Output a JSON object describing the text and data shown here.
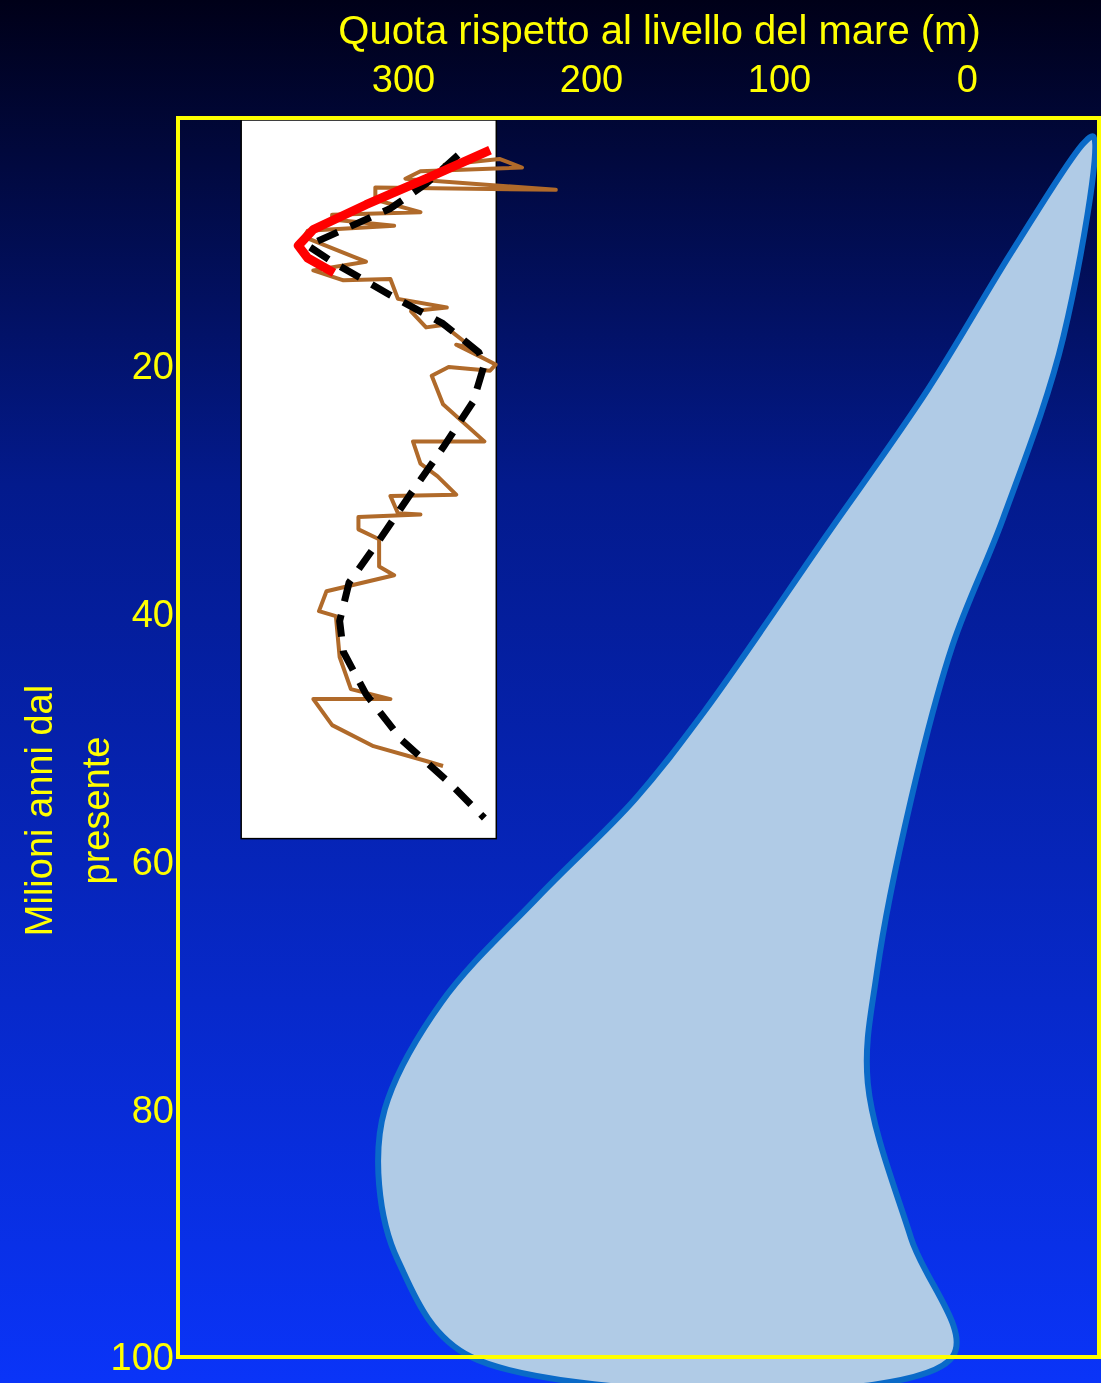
{
  "chart_data": {
    "type": "line",
    "xlabel": "Quota rispetto al livello del mare (m)",
    "ylabel": "Milioni anni dal presente",
    "xlim": [
      420,
      -70
    ],
    "xticks": [
      300,
      200,
      100,
      0
    ],
    "ylim": [
      100,
      0
    ],
    "yticks": [
      20,
      40,
      60,
      80,
      100
    ],
    "series": [
      {
        "type": "area",
        "color": "#b0cbe6",
        "x": [
          -62,
          -24,
          21,
          75,
          140,
          177,
          228,
          280,
          310,
          313,
          303,
          264,
          8,
          30,
          53,
          48,
          30,
          8,
          -19,
          -51,
          -67
        ],
        "values": [
          2,
          10.7,
          21.9,
          33.7,
          47.9,
          55,
          62.8,
          71.4,
          80,
          86.1,
          92.2,
          100,
          100,
          90.4,
          77.9,
          68.8,
          55,
          42.6,
          32.3,
          17.7,
          1.5
        ]
      },
      {
        "color": "#b06a2a",
        "line_style": "solid",
        "x": [
          279,
          249,
          237,
          291,
          299,
          219,
          315,
          315,
          291,
          338,
          338,
          305,
          351,
          353,
          320,
          348,
          332,
          307,
          303,
          277,
          296,
          288,
          279,
          263,
          272,
          260,
          251,
          254,
          276,
          285,
          279,
          257,
          295,
          291,
          282,
          272,
          307,
          303,
          291,
          324,
          324,
          313,
          313,
          305,
          341,
          345,
          336,
          334,
          328,
          307,
          348,
          338,
          316,
          288,
          279
        ],
        "values": [
          3.8,
          3.3,
          4.0,
          4.3,
          4.9,
          5.8,
          5.6,
          6.6,
          7.6,
          7.8,
          8.2,
          8.7,
          9.1,
          9.6,
          11.6,
          12.3,
          13.1,
          13.0,
          14.6,
          15.3,
          15.6,
          16.9,
          16.7,
          18.6,
          18.3,
          19.2,
          19.9,
          20.4,
          20.1,
          20.8,
          23.1,
          26.1,
          26.1,
          27.9,
          28.9,
          30.4,
          30.5,
          31.9,
          32.0,
          32.2,
          33.2,
          34.0,
          36.2,
          36.9,
          38.2,
          39.8,
          40.2,
          43.5,
          46.1,
          46.9,
          46.9,
          49.0,
          50.7,
          51.9,
          52.3
        ]
      },
      {
        "color": "#000000",
        "line_style": "dashed",
        "x": [
          271,
          288,
          307,
          351,
          338,
          307,
          279,
          260,
          257,
          263,
          279,
          297,
          313,
          329,
          334,
          332,
          320,
          301,
          276,
          257
        ],
        "values": [
          3.0,
          5.3,
          7.3,
          10.3,
          11.6,
          14.3,
          16.6,
          18.9,
          19.9,
          22.9,
          26.6,
          30.5,
          34.1,
          37.5,
          40.6,
          43.1,
          46.5,
          50.2,
          53.6,
          56.5
        ]
      },
      {
        "color": "#ff0000",
        "line_style": "solid",
        "x": [
          254,
          288,
          320,
          348,
          356,
          351,
          337
        ],
        "values": [
          2.6,
          4.9,
          7.0,
          9.0,
          10.3,
          11.3,
          12.5
        ]
      }
    ]
  }
}
